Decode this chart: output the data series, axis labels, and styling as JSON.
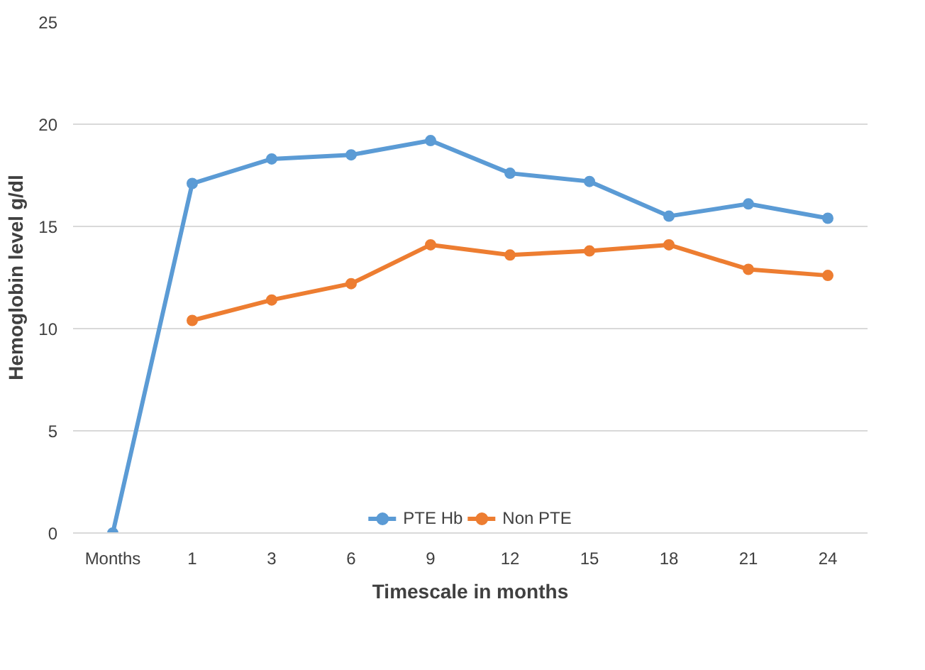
{
  "chart_data": {
    "type": "line",
    "xlabel": "Timescale in months",
    "ylabel": "Hemoglobin level g/dl",
    "categories": [
      "Months",
      "1",
      "3",
      "6",
      "9",
      "12",
      "15",
      "18",
      "21",
      "24"
    ],
    "series": [
      {
        "name": "PTE Hb",
        "color": "#5b9bd5",
        "values": [
          0,
          17.1,
          18.3,
          18.5,
          19.2,
          17.6,
          17.2,
          15.5,
          16.1,
          15.4
        ]
      },
      {
        "name": "Non PTE",
        "color": "#ed7d31",
        "values": [
          null,
          10.4,
          11.4,
          12.2,
          14.1,
          13.6,
          13.8,
          14.1,
          12.9,
          12.6
        ]
      }
    ],
    "ylim": [
      0,
      25
    ],
    "yticks": [
      0,
      5,
      10,
      15,
      20,
      25
    ],
    "grid": "y",
    "legend": "bottom",
    "marker": "circle",
    "line_style": "solid"
  }
}
